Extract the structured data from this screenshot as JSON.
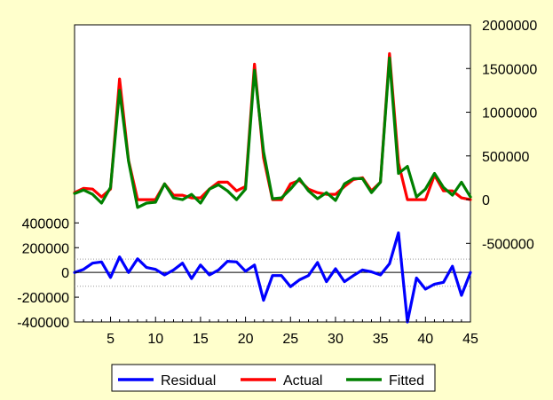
{
  "chart_data": {
    "type": "line",
    "title": "",
    "xlabel": "",
    "ylabel": "",
    "x": [
      1,
      2,
      3,
      4,
      5,
      6,
      7,
      8,
      9,
      10,
      11,
      12,
      13,
      14,
      15,
      16,
      17,
      18,
      19,
      20,
      21,
      22,
      23,
      24,
      25,
      26,
      27,
      28,
      29,
      30,
      31,
      32,
      33,
      34,
      35,
      36,
      37,
      38,
      39,
      40,
      41,
      42,
      43,
      44,
      45
    ],
    "xlim": [
      1,
      45
    ],
    "x_ticks": [
      5,
      10,
      15,
      20,
      25,
      30,
      35,
      40,
      45
    ],
    "x_tick_labels": [
      "5",
      "10",
      "15",
      "20",
      "25",
      "30",
      "35",
      "40",
      "45"
    ],
    "left_axis": {
      "ylim": [
        -400000,
        2000000
      ],
      "ticks": [
        -400000,
        -200000,
        0,
        200000,
        400000
      ],
      "tick_labels": [
        "-400000",
        "-200000",
        "0",
        "200000",
        "400000"
      ]
    },
    "right_axis": {
      "ylim": [
        -1400000,
        2000000
      ],
      "ticks": [
        -500000,
        0,
        500000,
        1000000,
        1500000,
        2000000
      ],
      "tick_labels": [
        "-500000",
        "0",
        "500000",
        "1000000",
        "1500000",
        "2000000"
      ]
    },
    "reference_lines": [
      {
        "axis": "left",
        "value": 0,
        "style": "solid"
      },
      {
        "axis": "left",
        "value": 108000,
        "style": "dotted"
      },
      {
        "axis": "left",
        "value": -112000,
        "style": "dotted"
      }
    ],
    "series": [
      {
        "name": "Residual",
        "axis": "left",
        "color": "#0000FF",
        "values": [
          0,
          25000,
          75000,
          85000,
          -40000,
          125000,
          0,
          110000,
          40000,
          25000,
          -20000,
          20000,
          75000,
          -50000,
          60000,
          -20000,
          20000,
          90000,
          85000,
          10000,
          60000,
          -225000,
          -25000,
          -25000,
          -115000,
          -60000,
          -25000,
          80000,
          -75000,
          30000,
          -75000,
          -25000,
          20000,
          5000,
          -20000,
          70000,
          320000,
          -400000,
          -45000,
          -135000,
          -95000,
          -80000,
          50000,
          -185000,
          0
        ]
      },
      {
        "name": "Actual",
        "axis": "right",
        "color": "#FF0000",
        "values": [
          80000,
          130000,
          120000,
          30000,
          120000,
          1380000,
          450000,
          0,
          0,
          0,
          180000,
          50000,
          50000,
          20000,
          20000,
          120000,
          200000,
          200000,
          100000,
          150000,
          1550000,
          480000,
          0,
          0,
          180000,
          220000,
          120000,
          80000,
          60000,
          60000,
          150000,
          230000,
          250000,
          100000,
          200000,
          1670000,
          420000,
          0,
          0,
          0,
          280000,
          100000,
          100000,
          20000,
          0
        ]
      },
      {
        "name": "Fitted",
        "axis": "right",
        "color": "#008000",
        "values": [
          70000,
          110000,
          60000,
          -40000,
          140000,
          1250000,
          440000,
          -90000,
          -40000,
          -30000,
          180000,
          20000,
          0,
          60000,
          -40000,
          120000,
          170000,
          100000,
          0,
          120000,
          1480000,
          550000,
          10000,
          20000,
          120000,
          240000,
          100000,
          10000,
          80000,
          -10000,
          180000,
          240000,
          240000,
          80000,
          200000,
          1620000,
          300000,
          380000,
          30000,
          120000,
          300000,
          140000,
          50000,
          200000,
          30000
        ]
      }
    ],
    "legend": {
      "position": "bottom",
      "entries": [
        "Residual",
        "Actual",
        "Fitted"
      ]
    }
  }
}
